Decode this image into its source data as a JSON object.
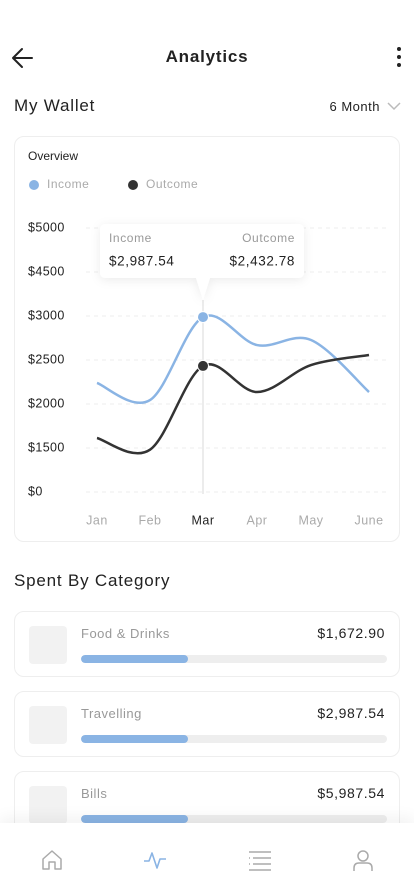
{
  "header": {
    "title": "Analytics"
  },
  "wallet": {
    "title": "My Wallet",
    "period": "6 Month"
  },
  "chart_data": {
    "type": "line",
    "title": "Overview",
    "categories": [
      "Jan",
      "Feb",
      "Mar",
      "Apr",
      "May",
      "June"
    ],
    "series": [
      {
        "name": "Income",
        "color": "#8ab4e4",
        "values": [
          2239,
          2045,
          2987.54,
          2670,
          2727,
          2136
        ],
        "value_labels": [
          null,
          null,
          "$2,987.54",
          null,
          null,
          null
        ]
      },
      {
        "name": "Outcome",
        "color": "#333333",
        "values": [
          1614,
          1443,
          2432.78,
          2136,
          2443,
          2557
        ],
        "value_labels": [
          null,
          null,
          "$2,432.78",
          null,
          null,
          null
        ]
      }
    ],
    "yticks": [
      {
        "value": 0,
        "label": "$0"
      },
      {
        "value": 1500,
        "label": "$1500"
      },
      {
        "value": 2000,
        "label": "$2000"
      },
      {
        "value": 2500,
        "label": "$2500"
      },
      {
        "value": 3000,
        "label": "$3000"
      },
      {
        "value": 4500,
        "label": "$4500"
      },
      {
        "value": 5000,
        "label": "$5000"
      }
    ],
    "ylim": [
      0,
      5000
    ],
    "grid": true,
    "selected_index": 2
  },
  "categories_section": {
    "title": "Spent By Category",
    "items": [
      {
        "name": "Food & Drinks",
        "amount": "$1,672.90",
        "progress": 35
      },
      {
        "name": "Travelling",
        "amount": "$2,987.54",
        "progress": 35
      },
      {
        "name": "Bills",
        "amount": "$5,987.54",
        "progress": 35
      }
    ]
  }
}
